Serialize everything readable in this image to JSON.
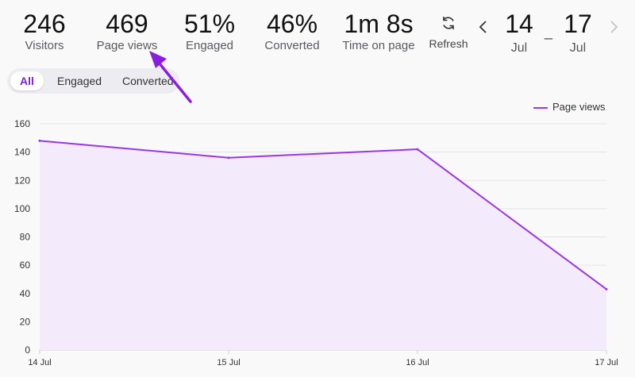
{
  "stats": [
    {
      "value": "246",
      "label": "Visitors"
    },
    {
      "value": "469",
      "label": "Page views"
    },
    {
      "value": "51%",
      "label": "Engaged"
    },
    {
      "value": "46%",
      "label": "Converted"
    },
    {
      "value": "1m 8s",
      "label": "Time on page"
    }
  ],
  "refresh": {
    "label": "Refresh",
    "icon": "refresh-icon"
  },
  "date_range": {
    "start": {
      "day": "14",
      "month": "Jul"
    },
    "separator": "_",
    "end": {
      "day": "17",
      "month": "Jul"
    },
    "prev_icon": "chevron-left-icon",
    "next_icon": "chevron-right-icon"
  },
  "filter_tabs": [
    {
      "label": "All",
      "active": true
    },
    {
      "label": "Engaged",
      "active": false
    },
    {
      "label": "Converted",
      "active": false
    }
  ],
  "colors": {
    "accent": "#9b35e6",
    "fill": "#f3ebfb",
    "annotation_arrow": "#8a1ee0"
  },
  "chart_data": {
    "type": "area",
    "series": [
      {
        "name": "Page views",
        "values": [
          148,
          136,
          142,
          43
        ]
      }
    ],
    "x": [
      "14 Jul",
      "15 Jul",
      "16 Jul",
      "17 Jul"
    ],
    "yticks": [
      "0",
      "20",
      "40",
      "60",
      "80",
      "100",
      "120",
      "140",
      "160"
    ],
    "ylim": [
      0,
      160
    ],
    "grid": true,
    "legend": "top-right"
  }
}
